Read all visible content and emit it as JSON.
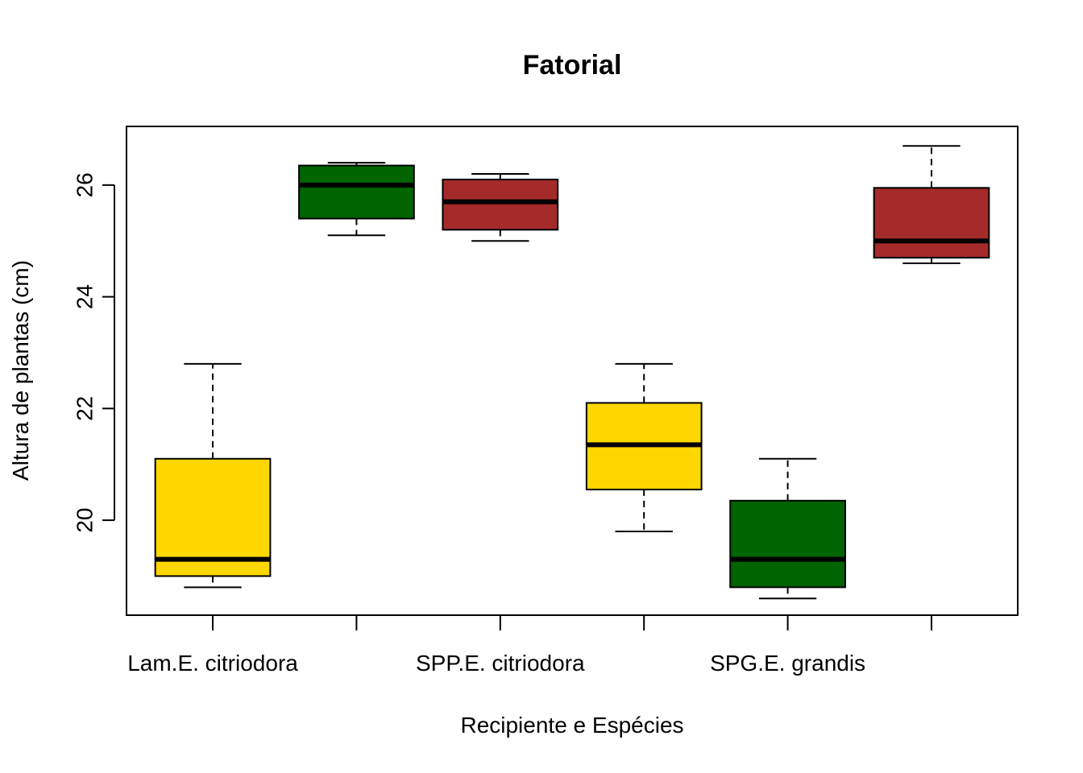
{
  "chart_data": {
    "type": "boxplot",
    "title": "Fatorial",
    "xlabel": "Recipiente e Espécies",
    "ylabel": "Altura de plantas (cm)",
    "ylim": [
      18.3,
      27.05
    ],
    "yticks": [
      20,
      22,
      24,
      26
    ],
    "x_tick_labels": [
      "Lam.E. citriodora",
      "",
      "SPP.E. citriodora",
      "",
      "SPG.E. grandis",
      ""
    ],
    "grid": false,
    "legend": "none",
    "boxes": [
      {
        "min": 18.8,
        "q1": 19.0,
        "median": 19.3,
        "q3": 21.1,
        "max": 22.8,
        "color": "#FFD700"
      },
      {
        "min": 25.1,
        "q1": 25.4,
        "median": 26.0,
        "q3": 26.35,
        "max": 26.4,
        "color": "#006400"
      },
      {
        "min": 25.0,
        "q1": 25.2,
        "median": 25.7,
        "q3": 26.1,
        "max": 26.2,
        "color": "#A52A2A"
      },
      {
        "min": 19.8,
        "q1": 20.55,
        "median": 21.35,
        "q3": 22.1,
        "max": 22.8,
        "color": "#FFD700"
      },
      {
        "min": 18.6,
        "q1": 18.8,
        "median": 19.3,
        "q3": 20.35,
        "max": 21.1,
        "color": "#006400"
      },
      {
        "min": 24.6,
        "q1": 24.7,
        "median": 25.0,
        "q3": 25.95,
        "max": 26.7,
        "color": "#A52A2A"
      }
    ]
  }
}
